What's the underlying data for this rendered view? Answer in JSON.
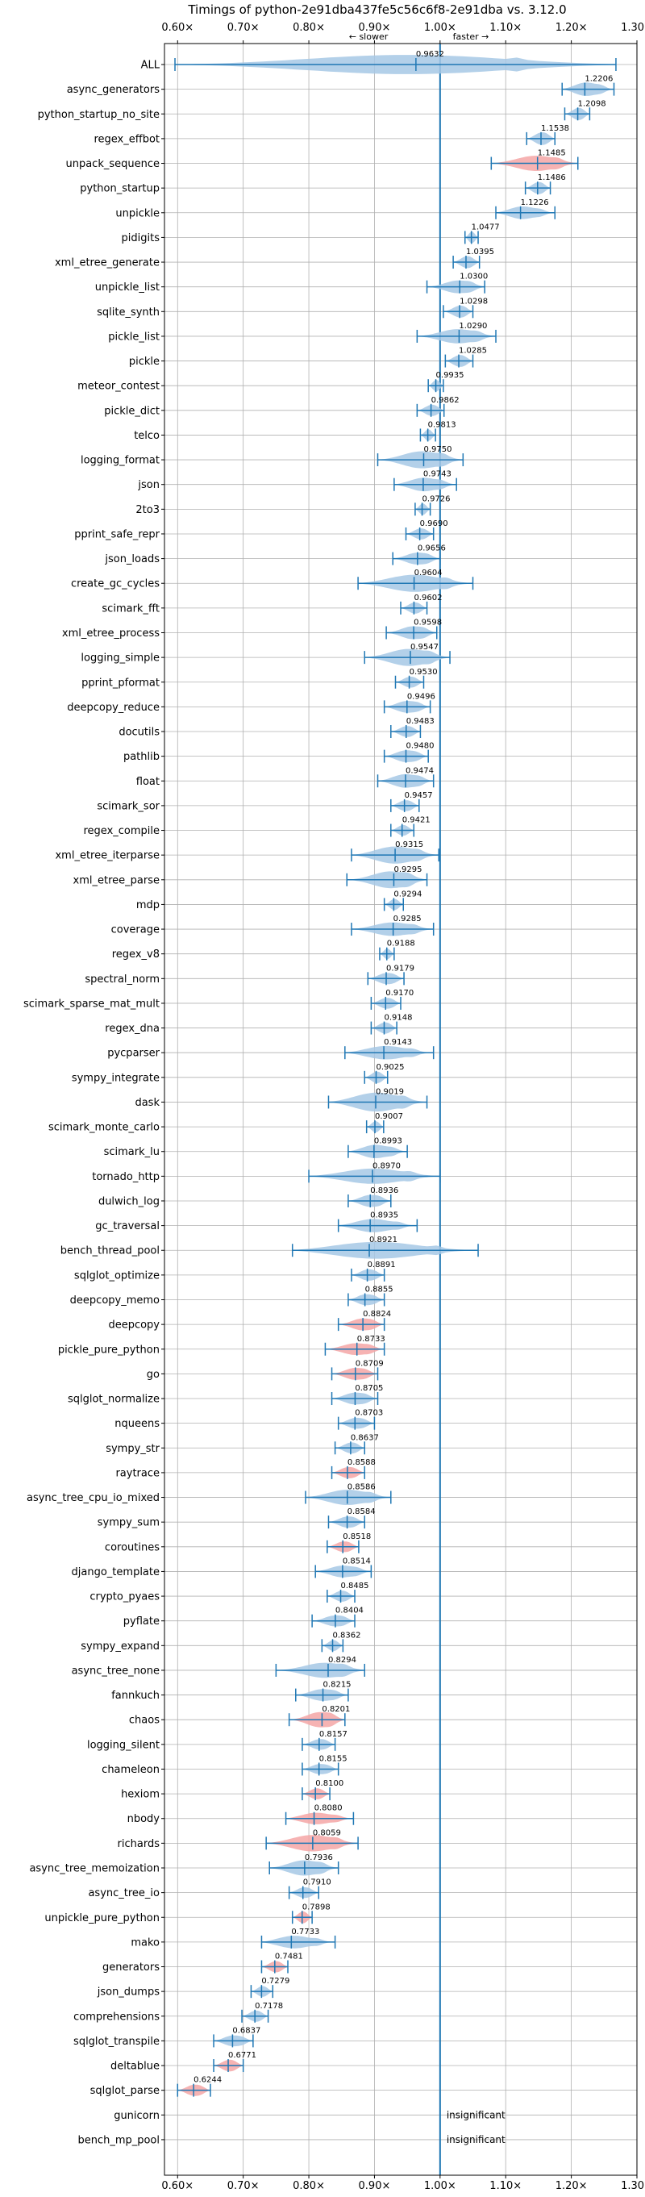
{
  "chart_data": {
    "type": "violin",
    "title": "Timings of python-2e91dba437fe5c56c6f8-2e91dba vs. 3.12.0",
    "annotation_slower": "← slower",
    "annotation_faster": "faster →",
    "xlim": [
      0.58,
      1.3
    ],
    "xticks": [
      "0.60×",
      "0.70×",
      "0.80×",
      "0.90×",
      "1.00×",
      "1.10×",
      "1.20×",
      "1.30×"
    ],
    "xtick_values": [
      0.6,
      0.7,
      0.8,
      0.9,
      1.0,
      1.1,
      1.2,
      1.3
    ],
    "reference_line": 1.0,
    "grid": true,
    "colors": {
      "normal": "#a6c8e5",
      "significant": "#f4a6a6",
      "line": "#1f77b4"
    },
    "benchmarks": [
      {
        "name": "ALL",
        "value": 0.9632,
        "label": "0.9632",
        "min": 0.596,
        "max": 1.268,
        "spread": 0.14,
        "sig": false
      },
      {
        "name": "async_generators",
        "value": 1.2206,
        "label": "1.2206",
        "min": 1.186,
        "max": 1.265,
        "spread": 0.02,
        "sig": false
      },
      {
        "name": "python_startup_no_site",
        "value": 1.2098,
        "label": "1.2098",
        "min": 1.19,
        "max": 1.228,
        "spread": 0.012,
        "sig": false
      },
      {
        "name": "regex_effbot",
        "value": 1.1538,
        "label": "1.1538",
        "min": 1.132,
        "max": 1.175,
        "spread": 0.014,
        "sig": false
      },
      {
        "name": "unpack_sequence",
        "value": 1.1485,
        "label": "1.1485",
        "min": 1.078,
        "max": 1.21,
        "spread": 0.025,
        "sig": true
      },
      {
        "name": "python_startup",
        "value": 1.1486,
        "label": "1.1486",
        "min": 1.13,
        "max": 1.168,
        "spread": 0.012,
        "sig": false
      },
      {
        "name": "unpickle",
        "value": 1.1226,
        "label": "1.1226",
        "min": 1.085,
        "max": 1.175,
        "spread": 0.018,
        "sig": false
      },
      {
        "name": "pidigits",
        "value": 1.0477,
        "label": "1.0477",
        "min": 1.038,
        "max": 1.058,
        "spread": 0.008,
        "sig": false
      },
      {
        "name": "xml_etree_generate",
        "value": 1.0395,
        "label": "1.0395",
        "min": 1.02,
        "max": 1.06,
        "spread": 0.012,
        "sig": false
      },
      {
        "name": "unpickle_list",
        "value": 1.03,
        "label": "1.0300",
        "min": 0.98,
        "max": 1.068,
        "spread": 0.018,
        "sig": false
      },
      {
        "name": "sqlite_synth",
        "value": 1.0298,
        "label": "1.0298",
        "min": 1.005,
        "max": 1.05,
        "spread": 0.012,
        "sig": false
      },
      {
        "name": "pickle_list",
        "value": 1.029,
        "label": "1.0290",
        "min": 0.965,
        "max": 1.085,
        "spread": 0.022,
        "sig": false
      },
      {
        "name": "pickle",
        "value": 1.0285,
        "label": "1.0285",
        "min": 1.008,
        "max": 1.05,
        "spread": 0.012,
        "sig": false
      },
      {
        "name": "meteor_contest",
        "value": 0.9935,
        "label": "0.9935",
        "min": 0.982,
        "max": 1.005,
        "spread": 0.008,
        "sig": false
      },
      {
        "name": "pickle_dict",
        "value": 0.9862,
        "label": "0.9862",
        "min": 0.965,
        "max": 1.006,
        "spread": 0.01,
        "sig": false
      },
      {
        "name": "telco",
        "value": 0.9813,
        "label": "0.9813",
        "min": 0.97,
        "max": 0.993,
        "spread": 0.008,
        "sig": false
      },
      {
        "name": "logging_format",
        "value": 0.975,
        "label": "0.9750",
        "min": 0.905,
        "max": 1.035,
        "spread": 0.03,
        "sig": false
      },
      {
        "name": "json",
        "value": 0.9743,
        "label": "0.9743",
        "min": 0.93,
        "max": 1.025,
        "spread": 0.02,
        "sig": false
      },
      {
        "name": "2to3",
        "value": 0.9726,
        "label": "0.9726",
        "min": 0.962,
        "max": 0.985,
        "spread": 0.008,
        "sig": false
      },
      {
        "name": "pprint_safe_repr",
        "value": 0.969,
        "label": "0.9690",
        "min": 0.948,
        "max": 0.99,
        "spread": 0.01,
        "sig": false
      },
      {
        "name": "json_loads",
        "value": 0.9656,
        "label": "0.9656",
        "min": 0.928,
        "max": 1.0,
        "spread": 0.015,
        "sig": false
      },
      {
        "name": "create_gc_cycles",
        "value": 0.9604,
        "label": "0.9604",
        "min": 0.875,
        "max": 1.05,
        "spread": 0.03,
        "sig": false
      },
      {
        "name": "scimark_fft",
        "value": 0.9602,
        "label": "0.9602",
        "min": 0.94,
        "max": 0.98,
        "spread": 0.01,
        "sig": false
      },
      {
        "name": "xml_etree_process",
        "value": 0.9598,
        "label": "0.9598",
        "min": 0.918,
        "max": 0.995,
        "spread": 0.018,
        "sig": false
      },
      {
        "name": "logging_simple",
        "value": 0.9547,
        "label": "0.9547",
        "min": 0.885,
        "max": 1.015,
        "spread": 0.03,
        "sig": false
      },
      {
        "name": "pprint_pformat",
        "value": 0.953,
        "label": "0.9530",
        "min": 0.932,
        "max": 0.975,
        "spread": 0.01,
        "sig": false
      },
      {
        "name": "deepcopy_reduce",
        "value": 0.9496,
        "label": "0.9496",
        "min": 0.915,
        "max": 0.985,
        "spread": 0.015,
        "sig": false
      },
      {
        "name": "docutils",
        "value": 0.9483,
        "label": "0.9483",
        "min": 0.925,
        "max": 0.97,
        "spread": 0.01,
        "sig": false
      },
      {
        "name": "pathlib",
        "value": 0.948,
        "label": "0.9480",
        "min": 0.915,
        "max": 0.982,
        "spread": 0.015,
        "sig": false
      },
      {
        "name": "float",
        "value": 0.9474,
        "label": "0.9474",
        "min": 0.905,
        "max": 0.99,
        "spread": 0.02,
        "sig": false
      },
      {
        "name": "scimark_sor",
        "value": 0.9457,
        "label": "0.9457",
        "min": 0.925,
        "max": 0.968,
        "spread": 0.01,
        "sig": false
      },
      {
        "name": "regex_compile",
        "value": 0.9421,
        "label": "0.9421",
        "min": 0.925,
        "max": 0.96,
        "spread": 0.008,
        "sig": false
      },
      {
        "name": "xml_etree_iterparse",
        "value": 0.9315,
        "label": "0.9315",
        "min": 0.865,
        "max": 0.998,
        "spread": 0.03,
        "sig": false
      },
      {
        "name": "xml_etree_parse",
        "value": 0.9295,
        "label": "0.9295",
        "min": 0.858,
        "max": 0.98,
        "spread": 0.03,
        "sig": false
      },
      {
        "name": "mdp",
        "value": 0.9294,
        "label": "0.9294",
        "min": 0.915,
        "max": 0.944,
        "spread": 0.008,
        "sig": false
      },
      {
        "name": "coverage",
        "value": 0.9285,
        "label": "0.9285",
        "min": 0.865,
        "max": 0.99,
        "spread": 0.02,
        "sig": false
      },
      {
        "name": "regex_v8",
        "value": 0.9188,
        "label": "0.9188",
        "min": 0.908,
        "max": 0.93,
        "spread": 0.006,
        "sig": false
      },
      {
        "name": "spectral_norm",
        "value": 0.9179,
        "label": "0.9179",
        "min": 0.89,
        "max": 0.945,
        "spread": 0.012,
        "sig": false
      },
      {
        "name": "scimark_sparse_mat_mult",
        "value": 0.917,
        "label": "0.9170",
        "min": 0.895,
        "max": 0.94,
        "spread": 0.01,
        "sig": false
      },
      {
        "name": "regex_dna",
        "value": 0.9148,
        "label": "0.9148",
        "min": 0.895,
        "max": 0.934,
        "spread": 0.01,
        "sig": false
      },
      {
        "name": "pycparser",
        "value": 0.9143,
        "label": "0.9143",
        "min": 0.855,
        "max": 0.99,
        "spread": 0.02,
        "sig": false
      },
      {
        "name": "sympy_integrate",
        "value": 0.9025,
        "label": "0.9025",
        "min": 0.885,
        "max": 0.92,
        "spread": 0.01,
        "sig": false
      },
      {
        "name": "dask",
        "value": 0.9019,
        "label": "0.9019",
        "min": 0.83,
        "max": 0.98,
        "spread": 0.035,
        "sig": false
      },
      {
        "name": "scimark_monte_carlo",
        "value": 0.9007,
        "label": "0.9007",
        "min": 0.888,
        "max": 0.914,
        "spread": 0.008,
        "sig": false
      },
      {
        "name": "scimark_lu",
        "value": 0.8993,
        "label": "0.8993",
        "min": 0.86,
        "max": 0.95,
        "spread": 0.02,
        "sig": false
      },
      {
        "name": "tornado_http",
        "value": 0.897,
        "label": "0.8970",
        "min": 0.8,
        "max": 1.0,
        "spread": 0.025,
        "sig": false
      },
      {
        "name": "dulwich_log",
        "value": 0.8936,
        "label": "0.8936",
        "min": 0.86,
        "max": 0.925,
        "spread": 0.015,
        "sig": false
      },
      {
        "name": "gc_traversal",
        "value": 0.8935,
        "label": "0.8935",
        "min": 0.845,
        "max": 0.965,
        "spread": 0.02,
        "sig": false
      },
      {
        "name": "bench_thread_pool",
        "value": 0.8921,
        "label": "0.8921",
        "min": 0.775,
        "max": 1.058,
        "spread": 0.03,
        "sig": false
      },
      {
        "name": "sqlglot_optimize",
        "value": 0.8891,
        "label": "0.8891",
        "min": 0.865,
        "max": 0.915,
        "spread": 0.012,
        "sig": false
      },
      {
        "name": "deepcopy_memo",
        "value": 0.8855,
        "label": "0.8855",
        "min": 0.86,
        "max": 0.915,
        "spread": 0.012,
        "sig": false
      },
      {
        "name": "deepcopy",
        "value": 0.8824,
        "label": "0.8824",
        "min": 0.845,
        "max": 0.915,
        "spread": 0.015,
        "sig": true
      },
      {
        "name": "pickle_pure_python",
        "value": 0.8733,
        "label": "0.8733",
        "min": 0.825,
        "max": 0.915,
        "spread": 0.015,
        "sig": true
      },
      {
        "name": "go",
        "value": 0.8709,
        "label": "0.8709",
        "min": 0.835,
        "max": 0.905,
        "spread": 0.015,
        "sig": true
      },
      {
        "name": "sqlglot_normalize",
        "value": 0.8705,
        "label": "0.8705",
        "min": 0.835,
        "max": 0.905,
        "spread": 0.015,
        "sig": false
      },
      {
        "name": "nqueens",
        "value": 0.8703,
        "label": "0.8703",
        "min": 0.845,
        "max": 0.9,
        "spread": 0.012,
        "sig": false
      },
      {
        "name": "sympy_str",
        "value": 0.8637,
        "label": "0.8637",
        "min": 0.84,
        "max": 0.885,
        "spread": 0.01,
        "sig": false
      },
      {
        "name": "raytrace",
        "value": 0.8588,
        "label": "0.8588",
        "min": 0.835,
        "max": 0.885,
        "spread": 0.012,
        "sig": true
      },
      {
        "name": "async_tree_cpu_io_mixed",
        "value": 0.8586,
        "label": "0.8586",
        "min": 0.795,
        "max": 0.925,
        "spread": 0.025,
        "sig": false
      },
      {
        "name": "sympy_sum",
        "value": 0.8584,
        "label": "0.8584",
        "min": 0.83,
        "max": 0.885,
        "spread": 0.012,
        "sig": false
      },
      {
        "name": "coroutines",
        "value": 0.8518,
        "label": "0.8518",
        "min": 0.828,
        "max": 0.876,
        "spread": 0.01,
        "sig": true
      },
      {
        "name": "django_template",
        "value": 0.8514,
        "label": "0.8514",
        "min": 0.81,
        "max": 0.895,
        "spread": 0.015,
        "sig": false
      },
      {
        "name": "crypto_pyaes",
        "value": 0.8485,
        "label": "0.8485",
        "min": 0.828,
        "max": 0.87,
        "spread": 0.01,
        "sig": false
      },
      {
        "name": "pyflate",
        "value": 0.8404,
        "label": "0.8404",
        "min": 0.805,
        "max": 0.87,
        "spread": 0.012,
        "sig": false
      },
      {
        "name": "sympy_expand",
        "value": 0.8362,
        "label": "0.8362",
        "min": 0.82,
        "max": 0.852,
        "spread": 0.008,
        "sig": false
      },
      {
        "name": "async_tree_none",
        "value": 0.8294,
        "label": "0.8294",
        "min": 0.75,
        "max": 0.885,
        "spread": 0.025,
        "sig": false
      },
      {
        "name": "fannkuch",
        "value": 0.8215,
        "label": "0.8215",
        "min": 0.78,
        "max": 0.86,
        "spread": 0.015,
        "sig": false
      },
      {
        "name": "chaos",
        "value": 0.8201,
        "label": "0.8201",
        "min": 0.77,
        "max": 0.855,
        "spread": 0.025,
        "sig": true
      },
      {
        "name": "logging_silent",
        "value": 0.8157,
        "label": "0.8157",
        "min": 0.79,
        "max": 0.84,
        "spread": 0.01,
        "sig": false
      },
      {
        "name": "chameleon",
        "value": 0.8155,
        "label": "0.8155",
        "min": 0.79,
        "max": 0.845,
        "spread": 0.01,
        "sig": false
      },
      {
        "name": "hexiom",
        "value": 0.81,
        "label": "0.8100",
        "min": 0.79,
        "max": 0.832,
        "spread": 0.01,
        "sig": true
      },
      {
        "name": "nbody",
        "value": 0.808,
        "label": "0.8080",
        "min": 0.765,
        "max": 0.868,
        "spread": 0.015,
        "sig": true
      },
      {
        "name": "richards",
        "value": 0.8059,
        "label": "0.8059",
        "min": 0.735,
        "max": 0.875,
        "spread": 0.028,
        "sig": true
      },
      {
        "name": "async_tree_memoization",
        "value": 0.7936,
        "label": "0.7936",
        "min": 0.74,
        "max": 0.845,
        "spread": 0.025,
        "sig": false
      },
      {
        "name": "async_tree_io",
        "value": 0.791,
        "label": "0.7910",
        "min": 0.77,
        "max": 0.815,
        "spread": 0.01,
        "sig": false
      },
      {
        "name": "unpickle_pure_python",
        "value": 0.7898,
        "label": "0.7898",
        "min": 0.775,
        "max": 0.805,
        "spread": 0.01,
        "sig": true
      },
      {
        "name": "mako",
        "value": 0.7733,
        "label": "0.7733",
        "min": 0.728,
        "max": 0.84,
        "spread": 0.018,
        "sig": false
      },
      {
        "name": "generators",
        "value": 0.7481,
        "label": "0.7481",
        "min": 0.728,
        "max": 0.768,
        "spread": 0.01,
        "sig": true
      },
      {
        "name": "json_dumps",
        "value": 0.7279,
        "label": "0.7279",
        "min": 0.712,
        "max": 0.745,
        "spread": 0.008,
        "sig": false
      },
      {
        "name": "comprehensions",
        "value": 0.7178,
        "label": "0.7178",
        "min": 0.698,
        "max": 0.738,
        "spread": 0.01,
        "sig": false
      },
      {
        "name": "sqlglot_transpile",
        "value": 0.6837,
        "label": "0.6837",
        "min": 0.655,
        "max": 0.715,
        "spread": 0.012,
        "sig": false
      },
      {
        "name": "deltablue",
        "value": 0.6771,
        "label": "0.6771",
        "min": 0.655,
        "max": 0.7,
        "spread": 0.012,
        "sig": true
      },
      {
        "name": "sqlglot_parse",
        "value": 0.6244,
        "label": "0.6244",
        "min": 0.6,
        "max": 0.65,
        "spread": 0.012,
        "sig": true
      },
      {
        "name": "gunicorn",
        "value": null,
        "label": "insignificant",
        "insignificant": true
      },
      {
        "name": "bench_mp_pool",
        "value": null,
        "label": "insignificant",
        "insignificant": true
      }
    ]
  }
}
